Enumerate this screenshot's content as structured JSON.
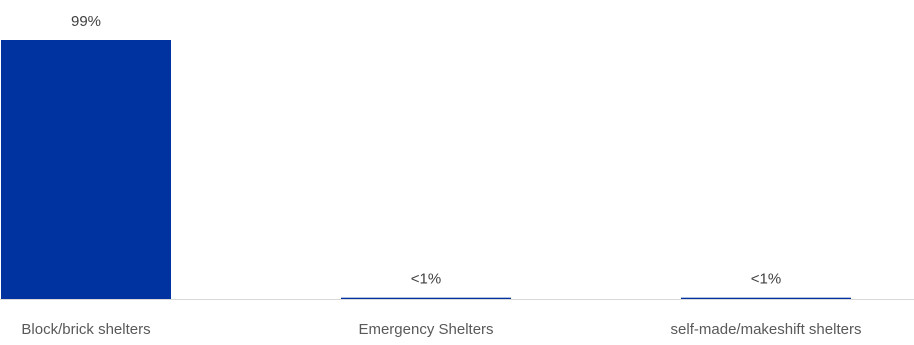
{
  "chart_data": {
    "type": "bar",
    "categories": [
      "Block/brick shelters",
      "Emergency Shelters",
      "self-made/makeshift shelters"
    ],
    "values": [
      99,
      0.5,
      0.5
    ],
    "data_labels": [
      "99%",
      "<1%",
      "<1%"
    ],
    "ylim": [
      0,
      100
    ],
    "grid": false,
    "legend": "none",
    "bar_color": "#0033A0",
    "axis_color": "#D9D9D9"
  }
}
